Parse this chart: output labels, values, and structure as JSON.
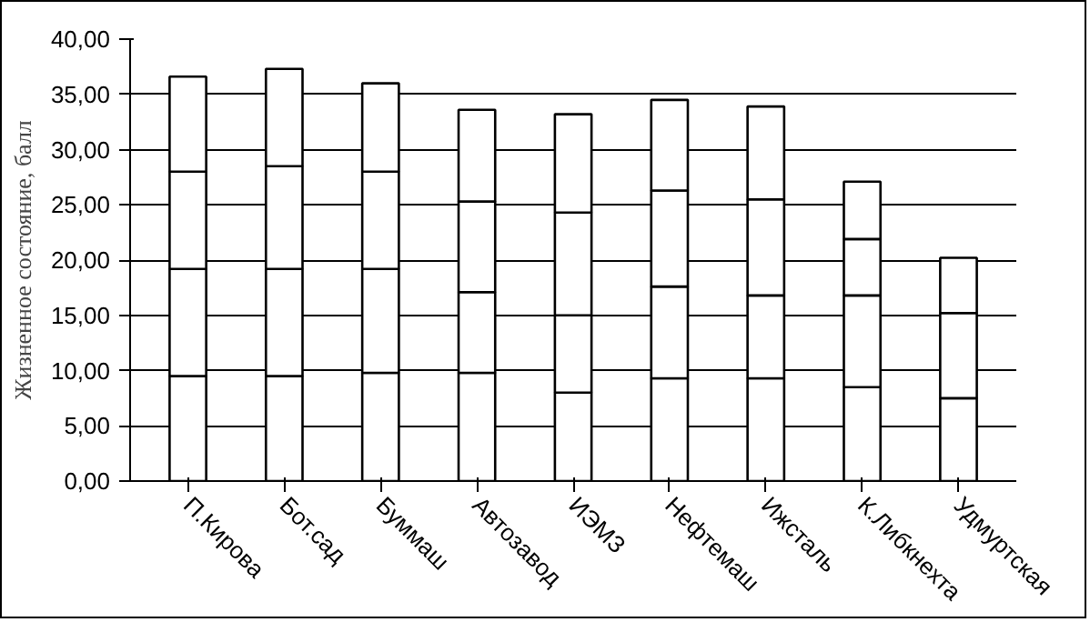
{
  "chart_data": {
    "type": "bar",
    "stacked": true,
    "ylabel": "Жизненное состояние, балл",
    "categories": [
      "П.Кирова",
      "Бот.сад",
      "Буммаш",
      "Автозавод",
      "ИЭМЗ",
      "Нефтемаш",
      "Ижсталь",
      "К.Либкнехта",
      "Удмуртская"
    ],
    "series": [
      {
        "color": "#ffffff",
        "values": [
          9.5,
          9.5,
          9.8,
          9.8,
          8.0,
          9.3,
          9.3,
          8.5,
          7.5
        ]
      },
      {
        "color": "#ffffff",
        "values": [
          9.7,
          9.7,
          9.4,
          7.3,
          7.0,
          8.3,
          7.5,
          8.3,
          7.7
        ]
      },
      {
        "color": "#ffffff",
        "values": [
          8.8,
          9.3,
          8.8,
          8.2,
          9.3,
          8.7,
          8.7,
          5.1,
          5.0
        ]
      },
      {
        "color": "#ffffff",
        "values": [
          8.6,
          8.8,
          8.0,
          8.3,
          8.9,
          8.2,
          8.4,
          5.2,
          null
        ]
      }
    ],
    "ylim": [
      0,
      40
    ],
    "yticks": [
      {
        "value": 0,
        "label": "0,00"
      },
      {
        "value": 5,
        "label": "5,00"
      },
      {
        "value": 10,
        "label": "10,00"
      },
      {
        "value": 15,
        "label": "15,00"
      },
      {
        "value": 20,
        "label": "20,00"
      },
      {
        "value": 25,
        "label": "25,00"
      },
      {
        "value": 30,
        "label": "30,00"
      },
      {
        "value": 35,
        "label": "35,00"
      },
      {
        "value": 40,
        "label": "40,00"
      }
    ],
    "grid": "y"
  }
}
